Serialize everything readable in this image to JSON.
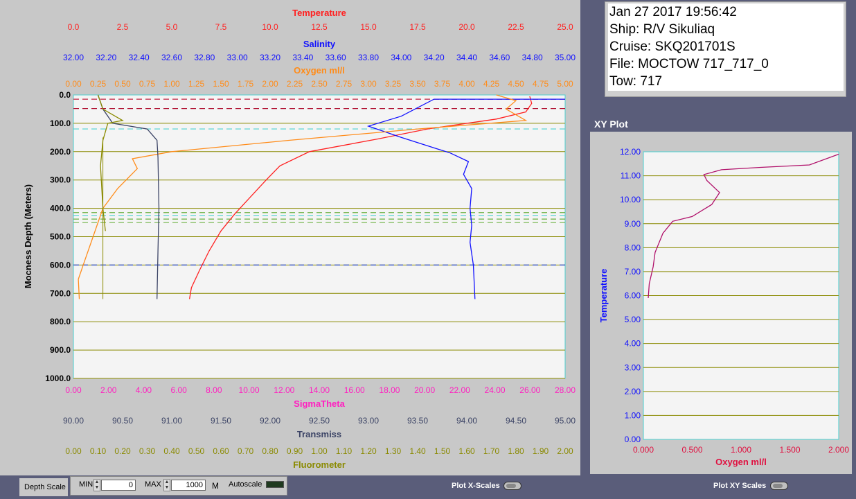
{
  "info": {
    "datetime": "Jan 27 2017 19:56:42",
    "ship": "Ship: R/V Sikuliaq",
    "cruise": "Cruise: SKQ201701S",
    "file": "File: MOCTOW 717_717_0",
    "tow": "Tow: 717"
  },
  "xy_plot_title": "XY Plot",
  "main_plot": {
    "top_axes": [
      {
        "label": "Temperature",
        "color": "#ff2020",
        "ticks": [
          "0.0",
          "2.5",
          "5.0",
          "7.5",
          "10.0",
          "12.5",
          "15.0",
          "17.5",
          "20.0",
          "22.5",
          "25.0"
        ]
      },
      {
        "label": "Salinity",
        "color": "#1010ff",
        "ticks": [
          "32.00",
          "32.20",
          "32.40",
          "32.60",
          "32.80",
          "33.00",
          "33.20",
          "33.40",
          "33.60",
          "33.80",
          "34.00",
          "34.20",
          "34.40",
          "34.60",
          "34.80",
          "35.00"
        ]
      },
      {
        "label": "Oxygen ml/l",
        "color": "#ff8c1a",
        "ticks": [
          "0.00",
          "0.25",
          "0.50",
          "0.75",
          "1.00",
          "1.25",
          "1.50",
          "1.75",
          "2.00",
          "2.25",
          "2.50",
          "2.75",
          "3.00",
          "3.25",
          "3.50",
          "3.75",
          "4.00",
          "4.25",
          "4.50",
          "4.75",
          "5.00"
        ]
      }
    ],
    "bottom_axes": [
      {
        "label": "SigmaTheta",
        "color": "#ff20c0",
        "ticks": [
          "0.00",
          "2.00",
          "4.00",
          "6.00",
          "8.00",
          "10.00",
          "12.00",
          "14.00",
          "16.00",
          "18.00",
          "20.00",
          "22.00",
          "24.00",
          "26.00",
          "28.00"
        ]
      },
      {
        "label": "Transmiss",
        "color": "#3c4466",
        "ticks": [
          "90.00",
          "90.50",
          "91.00",
          "91.50",
          "92.00",
          "92.50",
          "93.00",
          "93.50",
          "94.00",
          "94.50",
          "95.00"
        ]
      },
      {
        "label": "Fluorometer",
        "color": "#8a8a00",
        "ticks": [
          "0.00",
          "0.10",
          "0.20",
          "0.30",
          "0.40",
          "0.50",
          "0.60",
          "0.70",
          "0.80",
          "0.90",
          "1.00",
          "1.10",
          "1.20",
          "1.30",
          "1.40",
          "1.50",
          "1.60",
          "1.70",
          "1.80",
          "1.90",
          "2.00"
        ]
      }
    ],
    "y_axis_label": "Mocness Depth (Meters)",
    "y_ticks": [
      "0.0",
      "100.0",
      "200.0",
      "300.0",
      "400.0",
      "500.0",
      "600.0",
      "700.0",
      "800.0",
      "900.0",
      "1000.0"
    ]
  },
  "xy_plot": {
    "y_axis_label": "Temperature",
    "x_axis_label": "Oxygen ml/l",
    "y_ticks": [
      "0.00",
      "1.00",
      "2.00",
      "3.00",
      "4.00",
      "5.00",
      "6.00",
      "7.00",
      "8.00",
      "9.00",
      "10.00",
      "11.00",
      "12.00"
    ],
    "x_ticks": [
      "0.000",
      "0.500",
      "1.000",
      "1.500",
      "2.000"
    ]
  },
  "controls": {
    "depth_scale_label": "Depth Scale",
    "min_label": "MIN",
    "min_value": "0",
    "max_label": "MAX",
    "max_value": "1000",
    "unit": "M",
    "autoscale_label": "Autoscale",
    "plot_x_scales_label": "Plot X-Scales",
    "plot_xy_scales_label": "Plot XY Scales"
  },
  "chart_data": [
    {
      "type": "line",
      "title": "",
      "ylabel": "Mocness Depth (Meters)",
      "ylim": [
        1000,
        0
      ],
      "grid": true,
      "series": [
        {
          "name": "Temperature",
          "xlim": [
            0,
            25
          ],
          "color": "#ff2020",
          "points": [
            [
              23.2,
              5
            ],
            [
              23.3,
              30
            ],
            [
              23.0,
              60
            ],
            [
              21.5,
              85
            ],
            [
              18.0,
              120
            ],
            [
              15.5,
              155
            ],
            [
              12.0,
              200
            ],
            [
              10.5,
              250
            ],
            [
              9.8,
              300
            ],
            [
              9.0,
              360
            ],
            [
              8.2,
              420
            ],
            [
              7.5,
              480
            ],
            [
              6.9,
              550
            ],
            [
              6.4,
              620
            ],
            [
              6.0,
              680
            ],
            [
              5.9,
              720
            ]
          ]
        },
        {
          "name": "Salinity",
          "xlim": [
            32.0,
            35.0
          ],
          "color": "#1010ff",
          "points": [
            [
              35.0,
              15
            ],
            [
              34.2,
              15
            ],
            [
              34.0,
              75
            ],
            [
              33.8,
              110
            ],
            [
              34.0,
              150
            ],
            [
              34.3,
              205
            ],
            [
              34.41,
              235
            ],
            [
              34.38,
              280
            ],
            [
              34.43,
              330
            ],
            [
              34.42,
              400
            ],
            [
              34.43,
              460
            ],
            [
              34.42,
              520
            ],
            [
              34.44,
              600
            ],
            [
              34.45,
              720
            ]
          ]
        },
        {
          "name": "Oxygen ml/l",
          "xlim": [
            0,
            5
          ],
          "color": "#ff8c1a",
          "points": [
            [
              4.3,
              0
            ],
            [
              4.5,
              20
            ],
            [
              4.4,
              50
            ],
            [
              4.6,
              90
            ],
            [
              3.5,
              120
            ],
            [
              2.2,
              160
            ],
            [
              1.0,
              200
            ],
            [
              0.6,
              225
            ],
            [
              0.65,
              260
            ],
            [
              0.45,
              330
            ],
            [
              0.3,
              400
            ],
            [
              0.2,
              500
            ],
            [
              0.12,
              580
            ],
            [
              0.05,
              650
            ],
            [
              0.06,
              720
            ]
          ]
        },
        {
          "name": "Transmiss",
          "xlim": [
            90,
            95
          ],
          "color": "#3c4466",
          "points": [
            [
              90.25,
              0
            ],
            [
              90.3,
              50
            ],
            [
              90.4,
              100
            ],
            [
              90.75,
              120
            ],
            [
              90.85,
              160
            ],
            [
              90.86,
              220
            ],
            [
              90.87,
              400
            ],
            [
              90.86,
              550
            ],
            [
              90.85,
              720
            ]
          ]
        },
        {
          "name": "Fluorometer",
          "xlim": [
            0,
            2
          ],
          "color": "#8a8a00",
          "points": [
            [
              0.1,
              0
            ],
            [
              0.12,
              50
            ],
            [
              0.2,
              90
            ],
            [
              0.14,
              100
            ],
            [
              0.12,
              160
            ],
            [
              0.11,
              250
            ],
            [
              0.12,
              400
            ],
            [
              0.13,
              480
            ]
          ]
        }
      ]
    },
    {
      "type": "line",
      "title": "XY Plot",
      "xlabel": "Oxygen ml/l",
      "ylabel": "Temperature",
      "xlim": [
        0,
        2
      ],
      "ylim": [
        0,
        12
      ],
      "grid": true,
      "series": [
        {
          "name": "",
          "color": "#b0106a",
          "points": [
            [
              0.05,
              5.9
            ],
            [
              0.06,
              6.5
            ],
            [
              0.1,
              7.2
            ],
            [
              0.12,
              7.8
            ],
            [
              0.2,
              8.6
            ],
            [
              0.3,
              9.1
            ],
            [
              0.5,
              9.3
            ],
            [
              0.7,
              9.8
            ],
            [
              0.78,
              10.3
            ],
            [
              0.65,
              10.8
            ],
            [
              0.62,
              11.05
            ],
            [
              0.8,
              11.25
            ],
            [
              1.2,
              11.35
            ],
            [
              1.7,
              11.45
            ],
            [
              2.0,
              11.9
            ]
          ]
        }
      ]
    }
  ]
}
